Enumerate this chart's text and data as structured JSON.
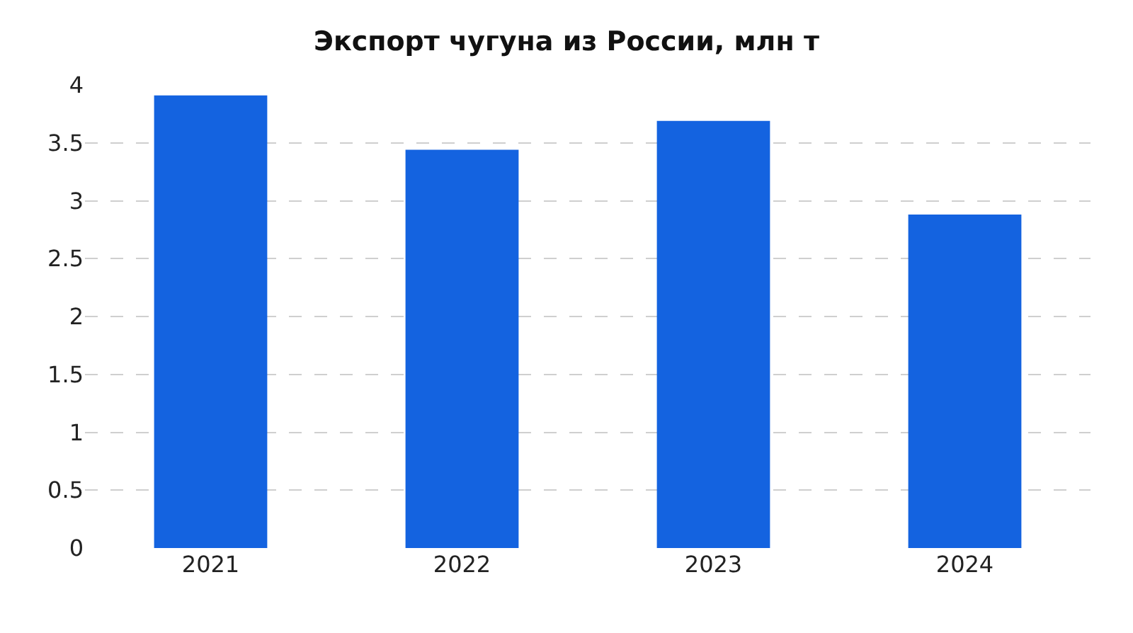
{
  "chart_data": {
    "type": "bar",
    "title": "Экспорт чугуна из России, млн т",
    "categories": [
      "2021",
      "2022",
      "2023",
      "2024"
    ],
    "values": [
      3.91,
      3.44,
      3.69,
      2.88
    ],
    "color": "#1463e0",
    "ylim": [
      0,
      4
    ],
    "yticks": [
      0,
      0.5,
      1,
      1.5,
      2,
      2.5,
      3,
      3.5,
      4
    ],
    "grid": "y",
    "legend": false
  }
}
